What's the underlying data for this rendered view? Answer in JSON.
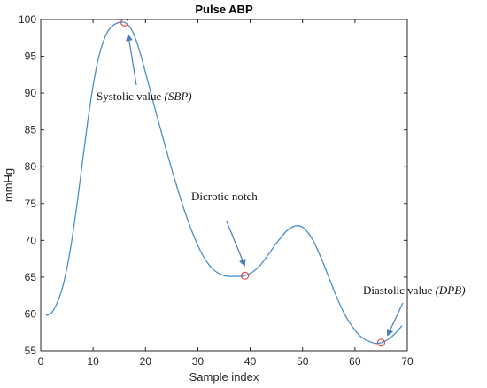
{
  "chart_data": {
    "type": "line",
    "title": "Pulse ABP",
    "xlabel": "Sample index",
    "ylabel": "mmHg",
    "xlim": [
      0,
      70
    ],
    "ylim": [
      55,
      100
    ],
    "xticks": [
      0,
      10,
      20,
      30,
      40,
      50,
      60,
      70
    ],
    "yticks": [
      55,
      60,
      65,
      70,
      75,
      80,
      85,
      90,
      95,
      100
    ],
    "grid": false,
    "series": [
      {
        "color": "#4a90c8",
        "x": [
          1,
          2,
          3,
          4,
          5,
          6,
          7,
          8,
          9,
          10,
          11,
          12,
          13,
          14,
          15,
          16,
          17,
          18,
          19,
          20,
          21,
          22,
          23,
          24,
          25,
          26,
          27,
          28,
          29,
          30,
          31,
          32,
          33,
          34,
          35,
          36,
          37,
          38,
          39,
          40,
          41,
          42,
          43,
          44,
          45,
          46,
          47,
          48,
          49,
          50,
          51,
          52,
          53,
          54,
          55,
          56,
          57,
          58,
          59,
          60,
          61,
          62,
          63,
          64,
          65,
          66,
          67,
          68,
          69
        ],
        "values": [
          59.8,
          60.1,
          61.3,
          63.2,
          66.2,
          70.3,
          75.3,
          80.8,
          86.3,
          91.0,
          94.7,
          97.1,
          98.6,
          99.3,
          99.6,
          99.6,
          99.0,
          97.6,
          95.4,
          92.8,
          90.1,
          87.4,
          84.8,
          82.2,
          79.7,
          77.3,
          75.0,
          72.9,
          71.0,
          69.3,
          67.9,
          66.8,
          66.0,
          65.5,
          65.2,
          65.1,
          65.1,
          65.1,
          65.2,
          65.5,
          66.0,
          66.7,
          67.6,
          68.6,
          69.6,
          70.5,
          71.3,
          71.8,
          72.0,
          71.8,
          71.1,
          70.0,
          68.5,
          66.8,
          65.0,
          63.2,
          61.5,
          60.0,
          58.8,
          57.8,
          57.0,
          56.5,
          56.2,
          56.0,
          56.1,
          56.4,
          56.9,
          57.6,
          58.4
        ]
      }
    ],
    "markers": [
      {
        "x": 16,
        "y": 99.6
      },
      {
        "x": 39,
        "y": 65.2
      },
      {
        "x": 65,
        "y": 56.1
      }
    ],
    "annotations": [
      {
        "text": "Systolic value ",
        "italic": "(SBP)"
      },
      {
        "text": "Dicrotic notch",
        "italic": ""
      },
      {
        "text": "Diastolic value ",
        "italic": "(DPB)"
      }
    ],
    "marker_color": "#e03030",
    "arrow_color": "#4a7cc0"
  }
}
